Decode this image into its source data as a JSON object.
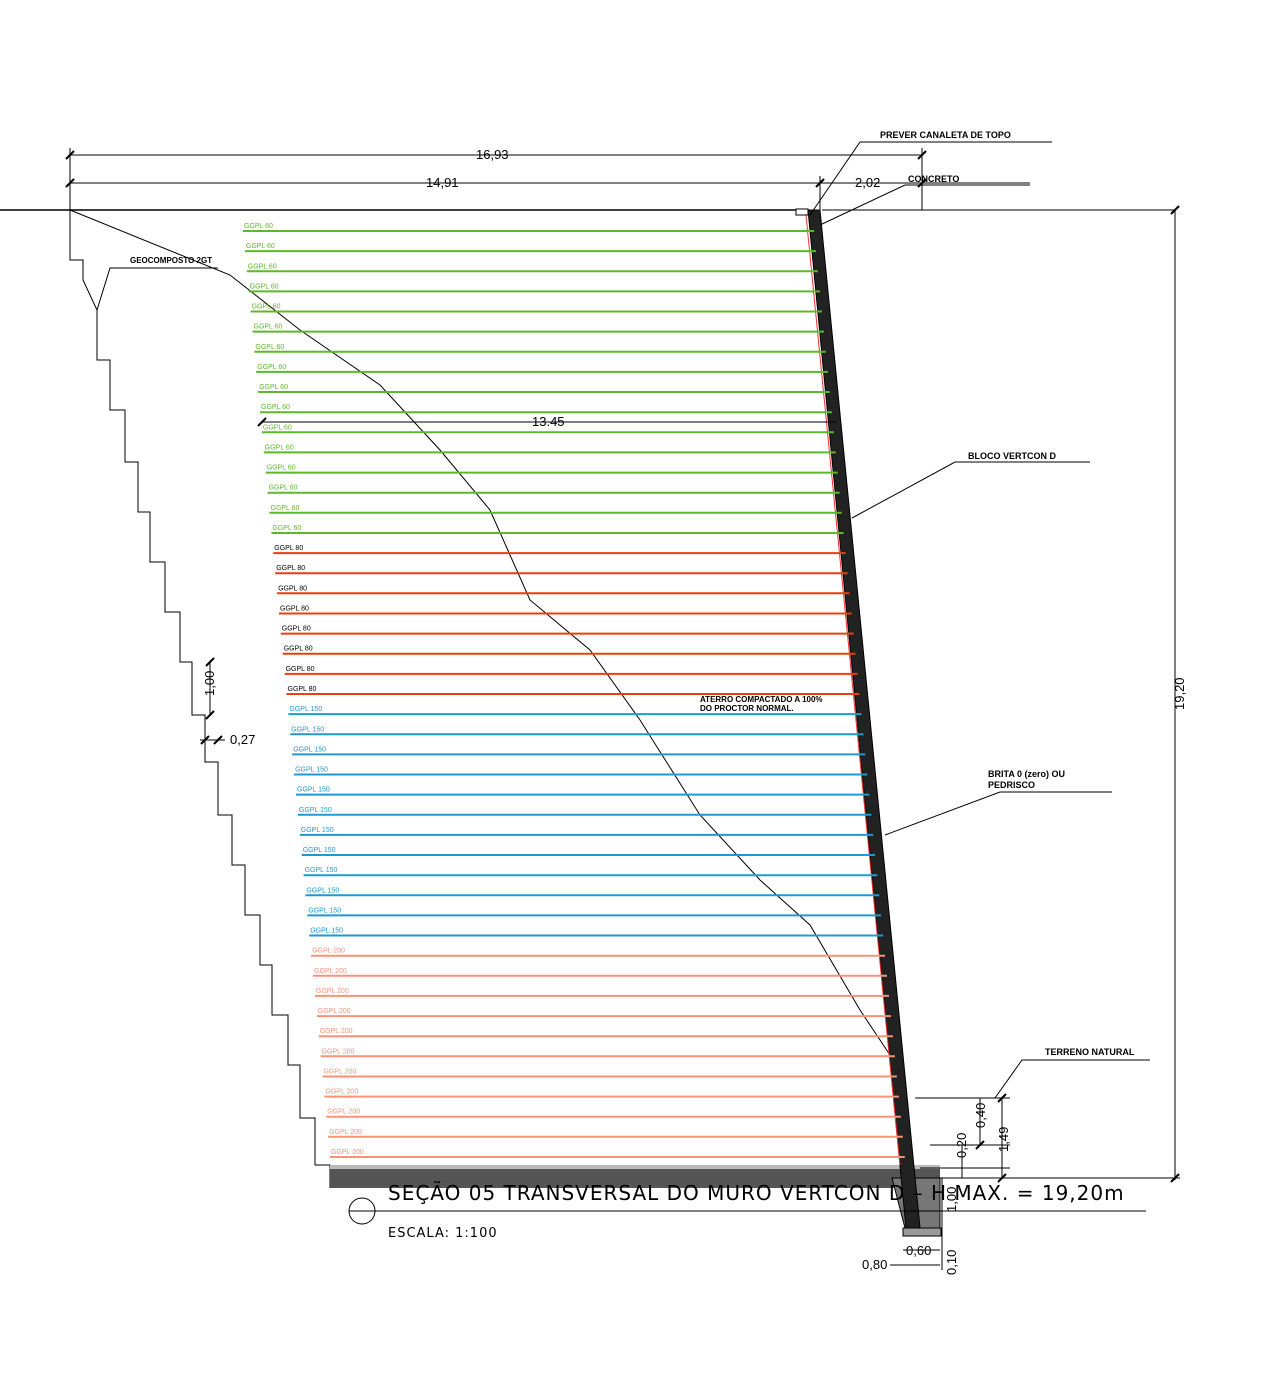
{
  "dimensions": {
    "total_width": "16,93",
    "fill_width": "14,91",
    "top_offset": "2,02",
    "reinforcement_length": "13.45",
    "total_height": "19,20",
    "step_height": "1,00",
    "step_width": "0,27",
    "embed_depth": "1,49",
    "dim_040": "0,40",
    "dim_020": "0,20",
    "footing_depth": "1,00",
    "footing_width": "0,60",
    "base_width": "0,80",
    "base_thickness": "0,10"
  },
  "labels": {
    "canaleta": "PREVER CANALETA DE TOPO",
    "concreto": "CONCRETO",
    "geocomposto": "GEOCOMPOSTO 2GT",
    "bloco": "BLOCO VERTCON D",
    "aterro_line1": "ATERRO COMPACTADO A 100%",
    "aterro_line2": "DO PROCTOR NORMAL.",
    "brita_line1": "BRITA 0 (zero) OU",
    "brita_line2": "PEDRISCO",
    "terreno": "TERRENO NATURAL"
  },
  "title": "SEÇÃO 05 TRANSVERSAL DO MURO VERTCON D – H MAX. = 19,20m",
  "scale": "ESCALA: 1:100",
  "geogrid_groups": [
    {
      "label": "GGPL 60",
      "count": 16,
      "color": "#5cb82a"
    },
    {
      "label": "GGPL 80",
      "count": 8,
      "color": "#ee3d0c"
    },
    {
      "label": "GGPL 150",
      "count": 12,
      "color": "#2298d2"
    },
    {
      "label": "GGPL 200",
      "count": 11,
      "color": "#f79278"
    }
  ]
}
